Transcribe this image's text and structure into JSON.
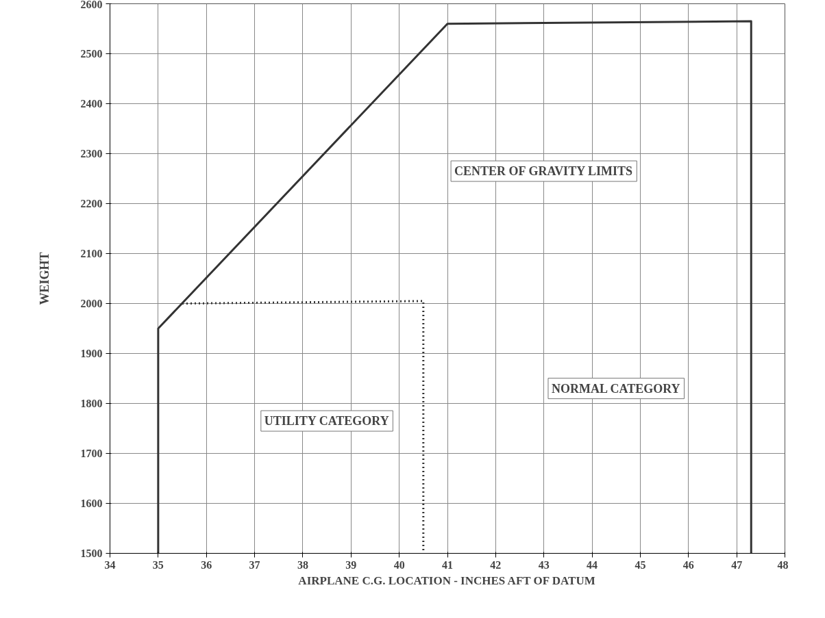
{
  "chart_data": {
    "type": "line",
    "xlabel": "AIRPLANE C.G. LOCATION - INCHES AFT OF DATUM",
    "ylabel": "WEIGHT",
    "xlim": [
      34,
      48
    ],
    "xticks": [
      34,
      35,
      36,
      37,
      38,
      39,
      40,
      41,
      42,
      43,
      44,
      45,
      46,
      47,
      48
    ],
    "ylim": [
      1500,
      2600
    ],
    "yticks": [
      1500,
      1600,
      1700,
      1800,
      1900,
      2000,
      2100,
      2200,
      2300,
      2400,
      2500,
      2600
    ],
    "grid": true,
    "marker": "none",
    "series": [
      {
        "color": "#333333",
        "line_style": "solid",
        "x": [
          35,
          35,
          41,
          47.3,
          47.3
        ],
        "values": [
          1500,
          1950,
          2560,
          2565,
          1500
        ]
      },
      {
        "color": "#333333",
        "line_style": "dotted",
        "x": [
          35.5,
          40.5,
          40.5
        ],
        "values": [
          2000,
          2005,
          1500
        ]
      }
    ],
    "annotations": [
      "CENTER OF GRAVITY LIMITS",
      "NORMAL CATEGORY",
      "UTILITY CATEGORY"
    ]
  }
}
